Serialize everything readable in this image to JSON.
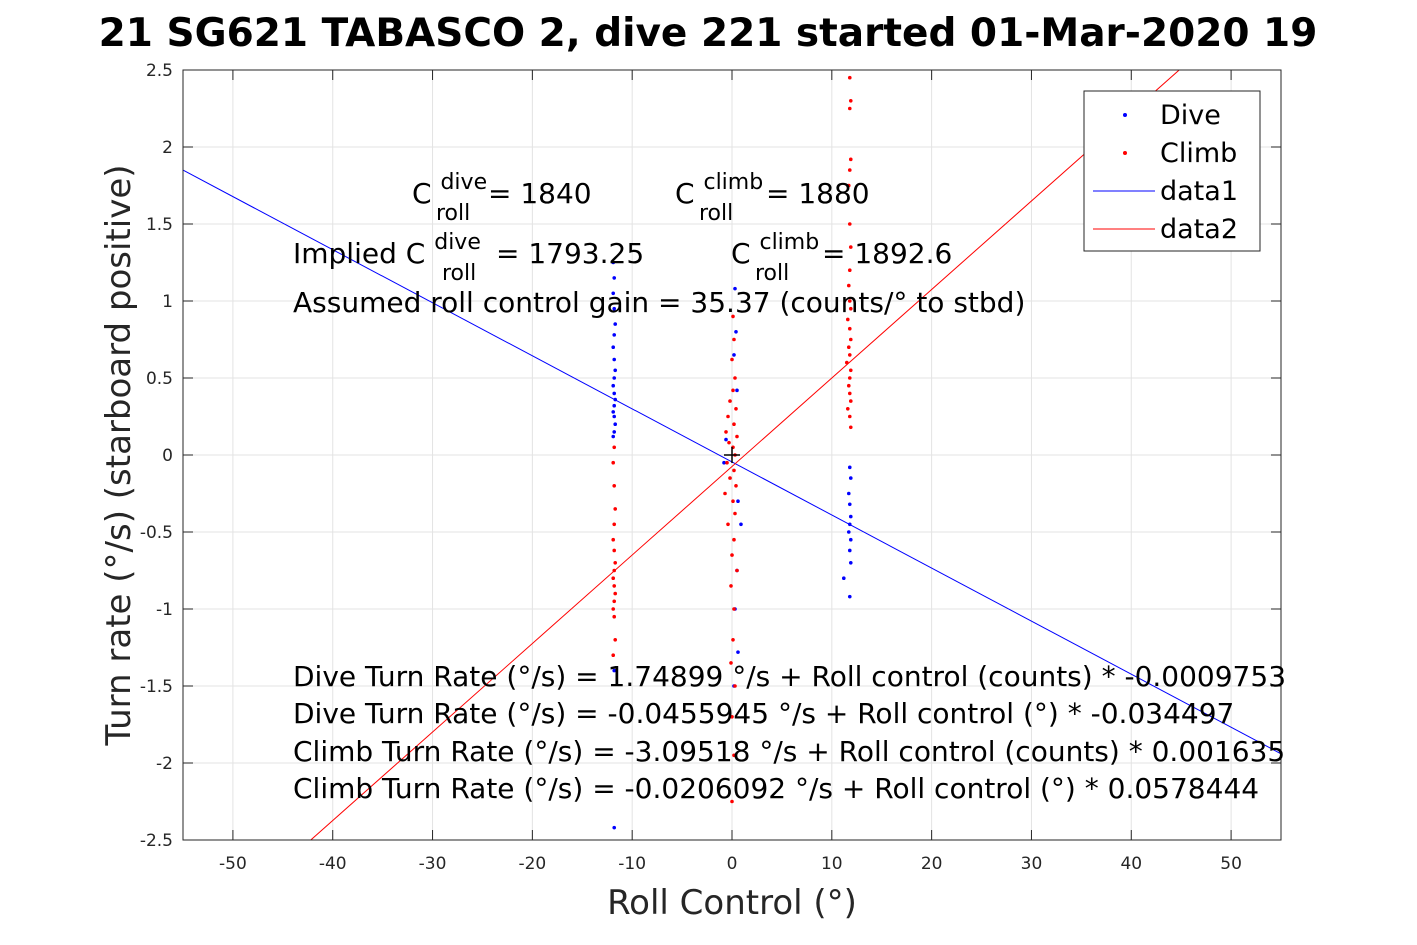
{
  "chart_data": {
    "type": "scatter",
    "title": "21 SG621 TABASCO 2, dive 221 started 01-Mar-2020 19",
    "xlabel": "Roll Control (°)",
    "ylabel": "Turn rate (°/s) (starboard positive)",
    "xlim": [
      -55,
      55
    ],
    "ylim": [
      -2.5,
      2.5
    ],
    "grid": true,
    "x_ticks": [
      -50,
      -40,
      -30,
      -20,
      -10,
      0,
      10,
      20,
      30,
      40,
      50
    ],
    "y_ticks": [
      -2.5,
      -2,
      -1.5,
      -1,
      -0.5,
      0,
      0.5,
      1,
      1.5,
      2,
      2.5
    ],
    "x_tick_labels": [
      "-50",
      "-40",
      "-30",
      "-20",
      "-10",
      "0",
      "10",
      "20",
      "30",
      "40",
      "50"
    ],
    "y_tick_labels": [
      "-2.5",
      "-2",
      "-1.5",
      "-1",
      "-0.5",
      "0",
      "0.5",
      "1",
      "1.5",
      "2",
      "2.5"
    ],
    "legend": {
      "position": "top-right",
      "entries": [
        "Dive",
        "Climb",
        "data1",
        "data2"
      ]
    },
    "series": [
      {
        "name": "Dive",
        "kind": "scatter",
        "color": "#0000ff",
        "points": [
          [
            -11.9,
            1.25
          ],
          [
            -11.8,
            1.15
          ],
          [
            -11.9,
            1.05
          ],
          [
            -11.8,
            0.95
          ],
          [
            -11.7,
            0.85
          ],
          [
            -11.8,
            0.78
          ],
          [
            -11.9,
            0.7
          ],
          [
            -11.8,
            0.62
          ],
          [
            -11.7,
            0.55
          ],
          [
            -11.8,
            0.5
          ],
          [
            -11.9,
            0.45
          ],
          [
            -11.8,
            0.4
          ],
          [
            -11.7,
            0.36
          ],
          [
            -11.8,
            0.32
          ],
          [
            -11.9,
            0.28
          ],
          [
            -11.8,
            0.25
          ],
          [
            -11.7,
            0.2
          ],
          [
            -11.8,
            0.15
          ],
          [
            -11.9,
            0.12
          ],
          [
            -11.8,
            -1.4
          ],
          [
            -11.8,
            -2.42
          ],
          [
            0.3,
            1.08
          ],
          [
            0.4,
            0.8
          ],
          [
            0.2,
            0.65
          ],
          [
            0.5,
            0.42
          ],
          [
            -0.6,
            0.1
          ],
          [
            -0.8,
            -0.05
          ],
          [
            0.6,
            -0.3
          ],
          [
            0.9,
            -0.45
          ],
          [
            0.5,
            -0.75
          ],
          [
            0.3,
            -1.0
          ],
          [
            0.6,
            -1.28
          ],
          [
            0.2,
            -1.5
          ],
          [
            11.8,
            -0.08
          ],
          [
            11.9,
            -0.15
          ],
          [
            11.7,
            -0.25
          ],
          [
            11.8,
            -0.32
          ],
          [
            11.9,
            -0.4
          ],
          [
            11.8,
            -0.45
          ],
          [
            11.7,
            -0.5
          ],
          [
            11.9,
            -0.55
          ],
          [
            11.8,
            -0.62
          ],
          [
            11.9,
            -0.7
          ],
          [
            11.2,
            -0.8
          ],
          [
            11.8,
            -0.92
          ]
        ]
      },
      {
        "name": "Climb",
        "kind": "scatter",
        "color": "#ff0000",
        "points": [
          [
            -11.8,
            0.05
          ],
          [
            -11.9,
            -0.05
          ],
          [
            -11.8,
            -0.2
          ],
          [
            -11.7,
            -0.35
          ],
          [
            -11.8,
            -0.45
          ],
          [
            -11.9,
            -0.55
          ],
          [
            -11.8,
            -0.62
          ],
          [
            -11.7,
            -0.7
          ],
          [
            -11.8,
            -0.75
          ],
          [
            -11.9,
            -0.8
          ],
          [
            -11.8,
            -0.85
          ],
          [
            -11.7,
            -0.9
          ],
          [
            -11.8,
            -0.95
          ],
          [
            -11.9,
            -1.0
          ],
          [
            -11.8,
            -1.05
          ],
          [
            -11.7,
            -1.2
          ],
          [
            -11.9,
            -1.3
          ],
          [
            0.1,
            0.9
          ],
          [
            0.2,
            0.75
          ],
          [
            0.0,
            0.62
          ],
          [
            0.3,
            0.5
          ],
          [
            0.1,
            0.42
          ],
          [
            -0.2,
            0.35
          ],
          [
            0.4,
            0.3
          ],
          [
            -0.4,
            0.25
          ],
          [
            0.2,
            0.2
          ],
          [
            -0.6,
            0.15
          ],
          [
            0.5,
            0.12
          ],
          [
            -0.3,
            0.08
          ],
          [
            0.1,
            0.05
          ],
          [
            0.3,
            0.0
          ],
          [
            -0.5,
            -0.05
          ],
          [
            0.2,
            -0.1
          ],
          [
            -0.2,
            -0.15
          ],
          [
            0.4,
            -0.2
          ],
          [
            -0.7,
            -0.25
          ],
          [
            0.1,
            -0.3
          ],
          [
            0.3,
            -0.38
          ],
          [
            -0.4,
            -0.45
          ],
          [
            0.2,
            -0.55
          ],
          [
            0.0,
            -0.65
          ],
          [
            0.5,
            -0.75
          ],
          [
            -0.1,
            -0.85
          ],
          [
            0.2,
            -1.0
          ],
          [
            0.1,
            -1.2
          ],
          [
            -0.1,
            -1.35
          ],
          [
            0.3,
            -1.5
          ],
          [
            0.0,
            -1.7
          ],
          [
            0.2,
            -1.95
          ],
          [
            0.0,
            -2.25
          ],
          [
            11.8,
            2.45
          ],
          [
            11.9,
            2.3
          ],
          [
            11.8,
            2.25
          ],
          [
            11.9,
            1.92
          ],
          [
            11.8,
            1.85
          ],
          [
            11.7,
            1.75
          ],
          [
            11.8,
            1.5
          ],
          [
            11.9,
            1.35
          ],
          [
            11.8,
            1.2
          ],
          [
            11.7,
            1.1
          ],
          [
            11.8,
            1.0
          ],
          [
            11.9,
            0.95
          ],
          [
            11.6,
            0.88
          ],
          [
            11.8,
            0.82
          ],
          [
            11.9,
            0.75
          ],
          [
            11.7,
            0.7
          ],
          [
            11.8,
            0.65
          ],
          [
            11.5,
            0.6
          ],
          [
            11.9,
            0.55
          ],
          [
            11.8,
            0.5
          ],
          [
            11.7,
            0.45
          ],
          [
            11.8,
            0.4
          ],
          [
            11.9,
            0.35
          ],
          [
            11.6,
            0.3
          ],
          [
            11.8,
            0.25
          ],
          [
            11.9,
            0.18
          ]
        ]
      },
      {
        "name": "data1",
        "kind": "line",
        "color": "#0000ff",
        "points": [
          [
            -55,
            1.85
          ],
          [
            55,
            -1.94
          ]
        ]
      },
      {
        "name": "data2",
        "kind": "line",
        "color": "#ff0000",
        "points": [
          [
            -42.2,
            -2.5
          ],
          [
            44.8,
            2.5
          ]
        ]
      }
    ],
    "annotations": {
      "c_roll_dive": {
        "base": "C",
        "sup": "dive",
        "sub": "roll",
        "value": " = 1840"
      },
      "c_roll_climb": {
        "base": "C",
        "sup": "climb",
        "sub": "roll",
        "value": " = 1880"
      },
      "implied_prefix": "Implied C",
      "implied_dive": {
        "sup": "dive",
        "sub": "roll",
        "value": " = 1793.25"
      },
      "implied_climb": {
        "base": "C",
        "sup": "climb",
        "sub": "roll",
        "value": " = 1892.6"
      },
      "gain": "Assumed roll control gain = 35.37 (counts/° to stbd)",
      "eq1": "Dive Turn Rate (°/s) = 1.74899 °/s + Roll control (counts) * -0.0009753",
      "eq2": "Dive Turn Rate (°/s) = -0.0455945 °/s + Roll control (°) * -0.034497",
      "eq3": "Climb Turn Rate (°/s) = -3.09518 °/s + Roll control (counts) * 0.001635",
      "eq4": "Climb Turn Rate (°/s) = -0.0206092 °/s + Roll control (°) * 0.0578444"
    }
  }
}
